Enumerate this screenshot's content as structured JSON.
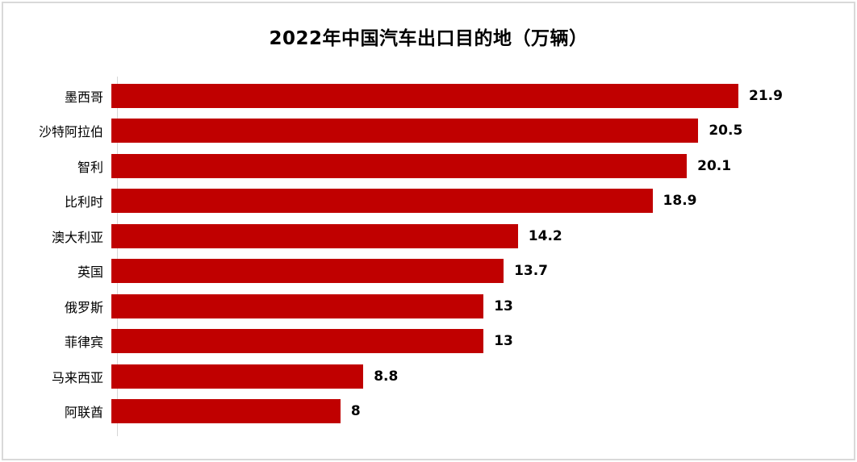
{
  "chart_data": {
    "type": "bar",
    "orientation": "horizontal",
    "title": "2022年中国汽车出口目的地（万辆）",
    "categories": [
      "墨西哥",
      "沙特阿拉伯",
      "智利",
      "比利时",
      "澳大利亚",
      "英国",
      "俄罗斯",
      "菲律宾",
      "马来西亚",
      "阿联酋"
    ],
    "values": [
      21.9,
      20.5,
      20.1,
      18.9,
      14.2,
      13.7,
      13,
      13,
      8.8,
      8
    ],
    "value_labels": [
      "21.9",
      "20.5",
      "20.1",
      "18.9",
      "14.2",
      "13.7",
      "13",
      "13",
      "8.8",
      "8"
    ],
    "xlabel": "",
    "ylabel": "",
    "xlim": [
      0,
      24.5
    ],
    "grid": false,
    "legend": false,
    "sort": "descending"
  },
  "colors": {
    "bar": "#c00000",
    "frame_border": "#d9d9d9",
    "axis_line": "#d6d6d6",
    "title_text": "#000000",
    "label_text": "#000000",
    "background": "#ffffff"
  }
}
